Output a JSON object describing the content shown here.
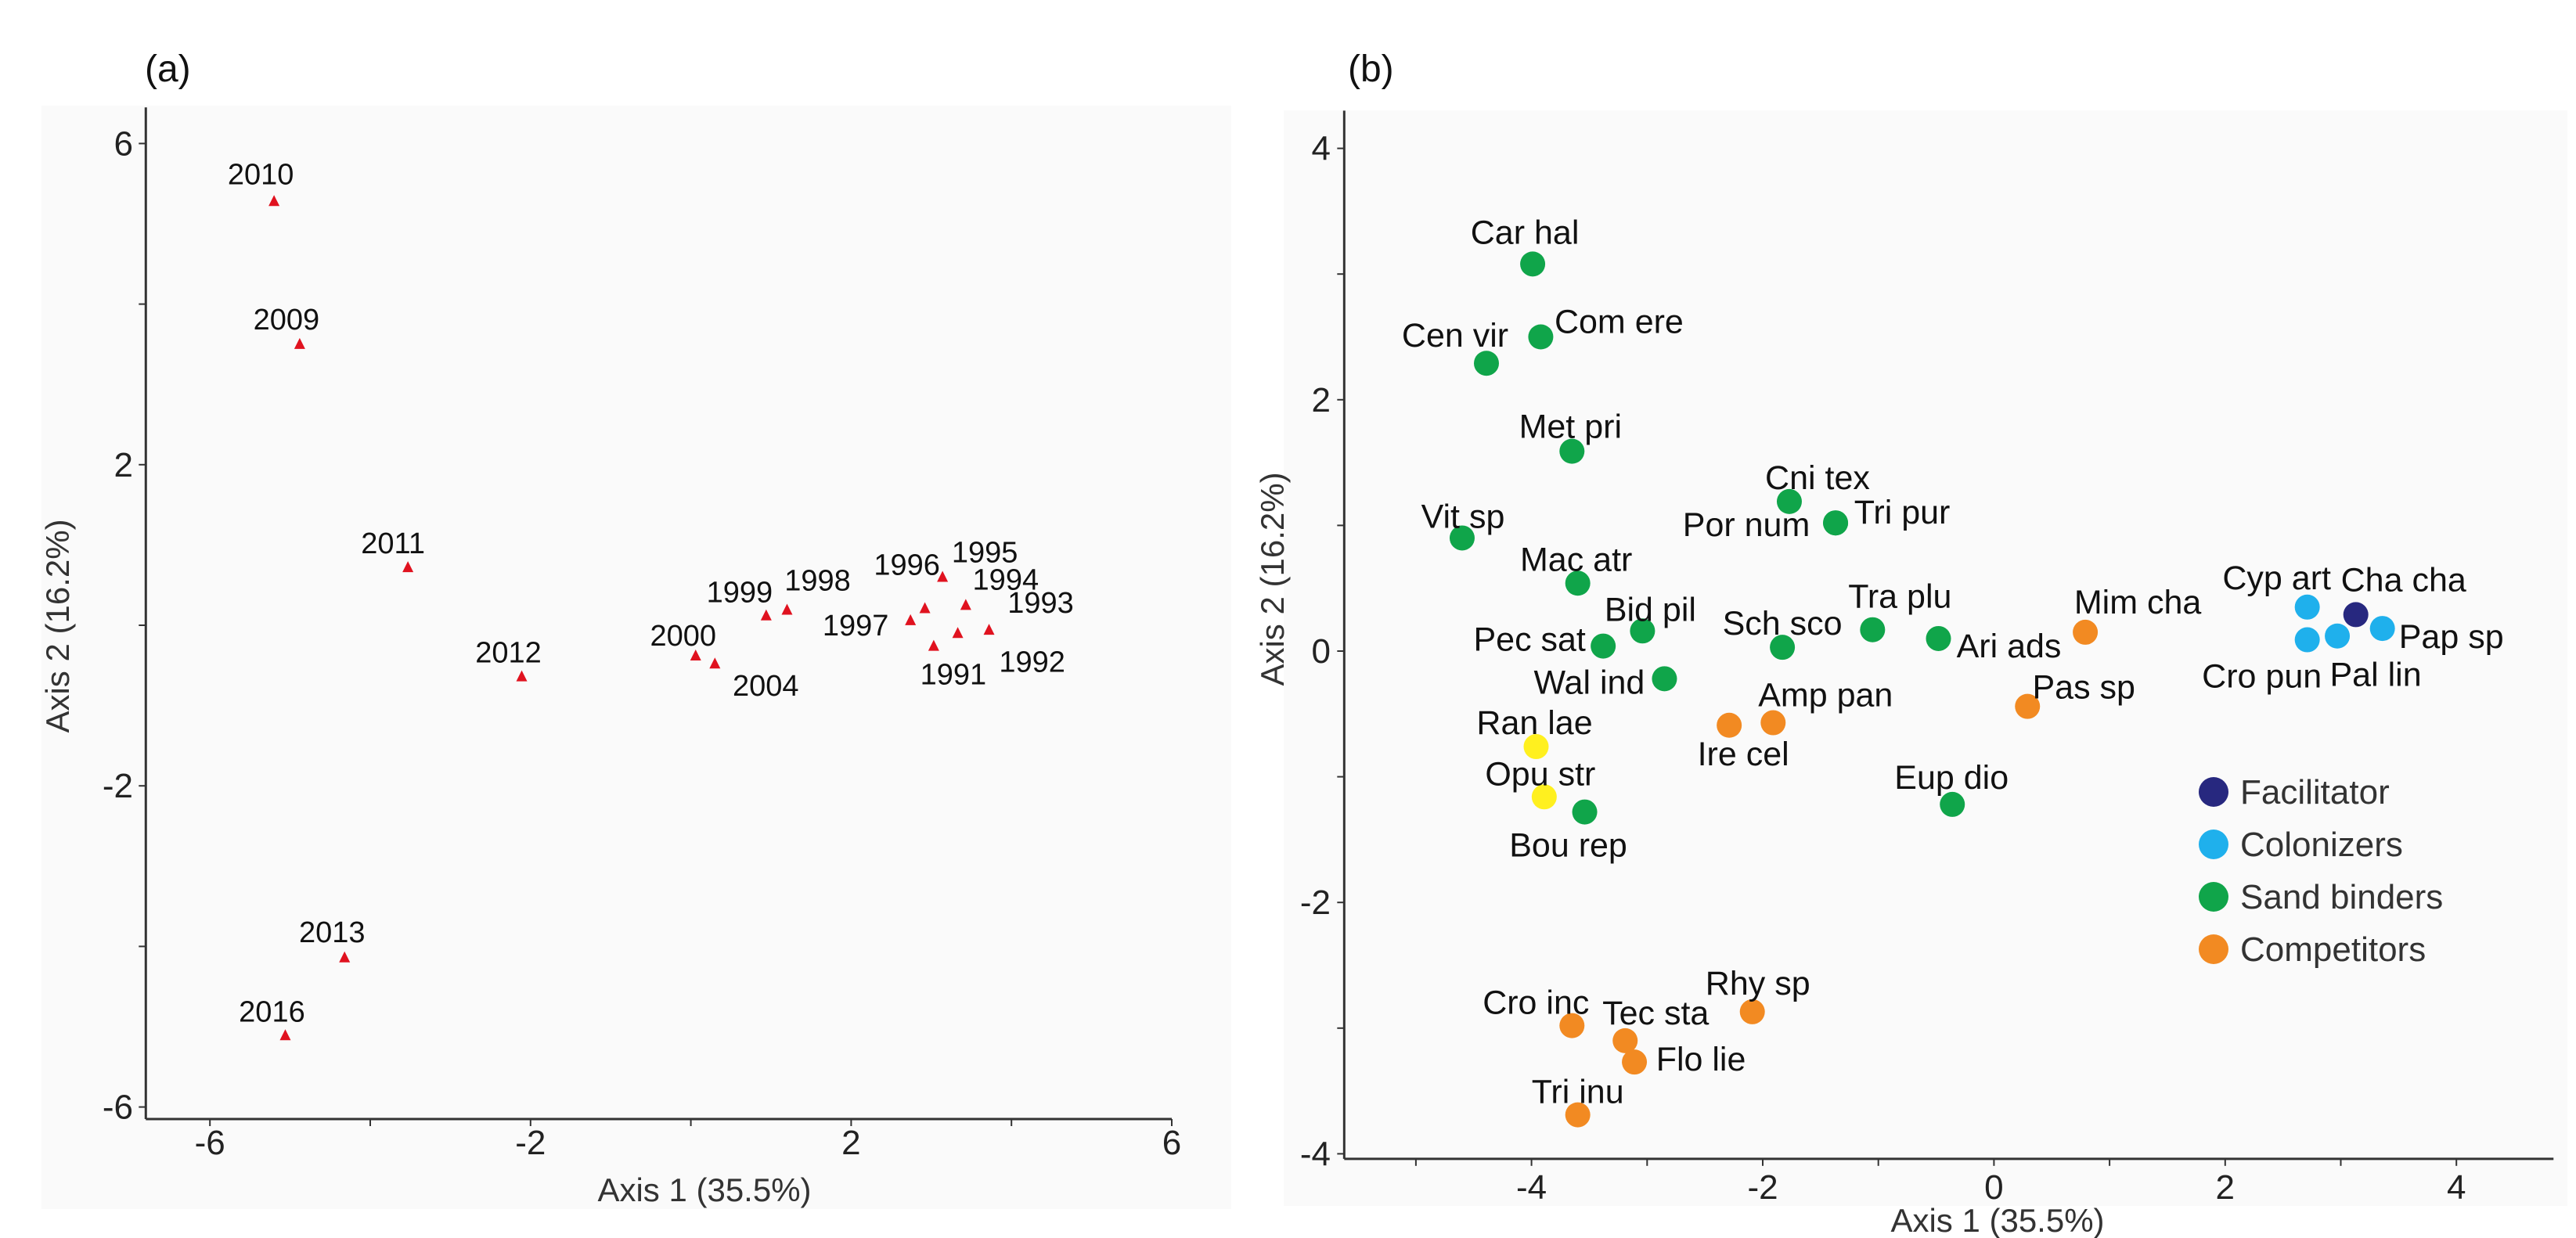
{
  "chart_data": [
    {
      "type": "scatter",
      "panel_label": "(a)",
      "xlabel": "Axis 1 (35.5%)",
      "ylabel": "Axis 2 (16.2%)",
      "xlim": [
        -6.8,
        6
      ],
      "ylim": [
        -6.15,
        6.45
      ],
      "xticks": [
        -6,
        -4,
        -2,
        0,
        2,
        4,
        6
      ],
      "xtick_labels": [
        "-6",
        "",
        "-2",
        "",
        "2",
        "",
        "6"
      ],
      "yticks": [
        6,
        4,
        2,
        0,
        -2,
        -4,
        -6
      ],
      "ytick_labels": [
        "6",
        "",
        "2",
        "",
        "-2",
        "",
        "-6"
      ],
      "marker": "triangle",
      "color": "#e0121f",
      "grid": false,
      "points": [
        {
          "label": "2010",
          "x": -5.2,
          "y": 5.28
        },
        {
          "label": "2009",
          "x": -4.88,
          "y": 3.5
        },
        {
          "label": "2011",
          "x": -3.53,
          "y": 0.72
        },
        {
          "label": "2012",
          "x": -2.11,
          "y": -0.64
        },
        {
          "label": "2000",
          "x": 0.06,
          "y": -0.38
        },
        {
          "label": "2004",
          "x": 0.3,
          "y": -0.48
        },
        {
          "label": "1999",
          "x": 0.94,
          "y": 0.12
        },
        {
          "label": "1998",
          "x": 1.2,
          "y": 0.19
        },
        {
          "label": "1997",
          "x": 2.74,
          "y": 0.06
        },
        {
          "label": "1996",
          "x": 2.92,
          "y": 0.21
        },
        {
          "label": "1995",
          "x": 3.14,
          "y": 0.6
        },
        {
          "label": "1994",
          "x": 3.43,
          "y": 0.25
        },
        {
          "label": "1993",
          "x": 3.72,
          "y": -0.06
        },
        {
          "label": "1992",
          "x": 3.33,
          "y": -0.1
        },
        {
          "label": "1991",
          "x": 3.03,
          "y": -0.26
        },
        {
          "label": "2013",
          "x": -4.32,
          "y": -4.14
        },
        {
          "label": "2016",
          "x": -5.06,
          "y": -5.11
        }
      ]
    },
    {
      "type": "scatter",
      "panel_label": "(b)",
      "xlabel": "Axis 1 (35.5%)",
      "ylabel": "Axis 2 (16.2%)",
      "xlim": [
        -5.62,
        4.84
      ],
      "ylim": [
        -4.04,
        4.3
      ],
      "xticks": [
        -5,
        -4,
        -3,
        -2,
        -1,
        0,
        1,
        2,
        3,
        4
      ],
      "xtick_labels": [
        "",
        "-4",
        "",
        "-2",
        "",
        "0",
        "",
        "2",
        "",
        "4"
      ],
      "yticks": [
        4,
        3,
        2,
        1,
        0,
        -1,
        -2,
        -3,
        -4
      ],
      "ytick_labels": [
        "4",
        "",
        "2",
        "",
        "0",
        "",
        "-2",
        "",
        "-4"
      ],
      "marker": "circle",
      "grid": false,
      "legend": {
        "position": "right",
        "entries": [
          {
            "name": "Facilitator",
            "group": "facilitator",
            "color": "#27287f"
          },
          {
            "name": "Colonizers",
            "group": "colonizer",
            "color": "#1fb0ec"
          },
          {
            "name": "Sand binders",
            "group": "sandbinder",
            "color": "#10a54a"
          },
          {
            "name": "Competitors",
            "group": "competitor",
            "color": "#f28a22"
          }
        ]
      },
      "unlisted_group_color": {
        "other": "#fff01f"
      },
      "points": [
        {
          "label": "Car hal",
          "x": -3.99,
          "y": 3.08,
          "group": "sandbinder"
        },
        {
          "label": "Com ere",
          "x": -3.92,
          "y": 2.5,
          "group": "sandbinder"
        },
        {
          "label": "Cen vir",
          "x": -4.39,
          "y": 2.29,
          "group": "sandbinder"
        },
        {
          "label": "Met pri",
          "x": -3.65,
          "y": 1.59,
          "group": "sandbinder"
        },
        {
          "label": "Cni tex",
          "x": -1.77,
          "y": 1.19,
          "group": "sandbinder"
        },
        {
          "label": "Tri pur",
          "x": -1.37,
          "y": 1.02,
          "group": "sandbinder"
        },
        {
          "label": "Por num",
          "x": -1.37,
          "y": 1.02,
          "group": "sandbinder"
        },
        {
          "label": "Vit sp",
          "x": -4.6,
          "y": 0.9,
          "group": "sandbinder"
        },
        {
          "label": "Mac atr",
          "x": -3.6,
          "y": 0.54,
          "group": "sandbinder"
        },
        {
          "label": "Bid pil",
          "x": -3.04,
          "y": 0.16,
          "group": "sandbinder"
        },
        {
          "label": "Pec sat",
          "x": -3.38,
          "y": 0.04,
          "group": "sandbinder"
        },
        {
          "label": "Sch sco",
          "x": -1.83,
          "y": 0.03,
          "group": "sandbinder"
        },
        {
          "label": "Tra plu",
          "x": -1.05,
          "y": 0.17,
          "group": "sandbinder"
        },
        {
          "label": "Ari ads",
          "x": -0.48,
          "y": 0.1,
          "group": "sandbinder"
        },
        {
          "label": "Wal ind",
          "x": -2.85,
          "y": -0.22,
          "group": "sandbinder"
        },
        {
          "label": "Bou rep",
          "x": -3.54,
          "y": -1.28,
          "group": "sandbinder"
        },
        {
          "label": "Eup dio",
          "x": -0.36,
          "y": -1.22,
          "group": "sandbinder"
        },
        {
          "label": "Mim cha",
          "x": 0.79,
          "y": 0.15,
          "group": "competitor"
        },
        {
          "label": "Pas sp",
          "x": 0.29,
          "y": -0.44,
          "group": "competitor"
        },
        {
          "label": "Amp pan",
          "x": -1.91,
          "y": -0.57,
          "group": "competitor"
        },
        {
          "label": "Ire cel",
          "x": -2.29,
          "y": -0.59,
          "group": "competitor"
        },
        {
          "label": "Ran lae",
          "x": -3.96,
          "y": -0.76,
          "group": "other"
        },
        {
          "label": "Opu str",
          "x": -3.89,
          "y": -1.16,
          "group": "other"
        },
        {
          "label": "Cyp art",
          "x": 2.71,
          "y": 0.35,
          "group": "colonizer"
        },
        {
          "label": "Cha cha",
          "x": 3.13,
          "y": 0.29,
          "group": "facilitator"
        },
        {
          "label": "Pap sp",
          "x": 3.36,
          "y": 0.18,
          "group": "colonizer"
        },
        {
          "label": "Cro pun",
          "x": 2.71,
          "y": 0.09,
          "group": "colonizer"
        },
        {
          "label": "Pal lin",
          "x": 2.97,
          "y": 0.12,
          "group": "colonizer"
        },
        {
          "label": "Cro inc",
          "x": -3.65,
          "y": -2.98,
          "group": "competitor"
        },
        {
          "label": "Rhy sp",
          "x": -2.09,
          "y": -2.87,
          "group": "competitor"
        },
        {
          "label": "Tec sta",
          "x": -3.19,
          "y": -3.1,
          "group": "competitor"
        },
        {
          "label": "Flo lie",
          "x": -3.11,
          "y": -3.27,
          "group": "competitor"
        },
        {
          "label": "Tri inu",
          "x": -3.6,
          "y": -3.69,
          "group": "competitor"
        }
      ]
    }
  ]
}
